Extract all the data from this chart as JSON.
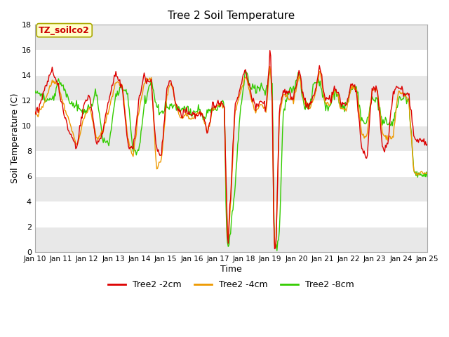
{
  "title": "Tree 2 Soil Temperature",
  "xlabel": "Time",
  "ylabel": "Soil Temperature (C)",
  "annotation_text": "TZ_soilco2",
  "annotation_color": "#cc0000",
  "annotation_bg": "#ffffcc",
  "annotation_border": "#aaa800",
  "ylim": [
    0,
    18
  ],
  "yticks": [
    0,
    2,
    4,
    6,
    8,
    10,
    12,
    14,
    16,
    18
  ],
  "line_colors": {
    "2cm": "#dd0000",
    "4cm": "#ee9900",
    "8cm": "#33cc00"
  },
  "legend_labels": [
    "Tree2 -2cm",
    "Tree2 -4cm",
    "Tree2 -8cm"
  ],
  "fig_bg": "#ffffff",
  "plot_bg_light": "#e8e8e8",
  "plot_bg_dark": "#d8d8d8",
  "grid_color": "#ffffff",
  "figsize": [
    6.4,
    4.8
  ],
  "dpi": 100
}
